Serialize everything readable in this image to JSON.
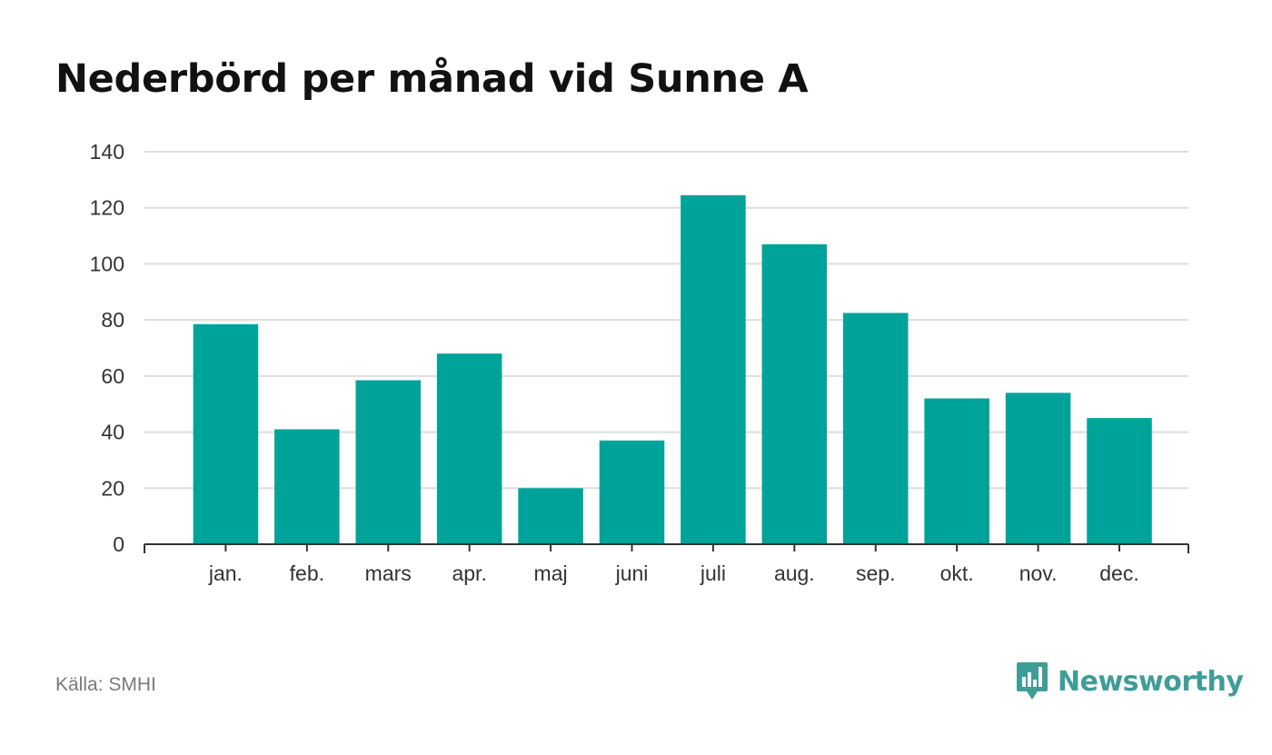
{
  "title": "Nederbörd per månad vid Sunne A",
  "source": "Källa: SMHI",
  "brand": {
    "name": "Newsworthy",
    "color": "#3f9d97",
    "icon": "bar-chart-speech-bubble-icon"
  },
  "colors": {
    "bar": "#00a39a",
    "grid": "#dddddd",
    "axis": "#333333",
    "text": "#333333"
  },
  "chart_data": {
    "type": "bar",
    "title": "Nederbörd per månad vid Sunne A",
    "xlabel": "",
    "ylabel": "",
    "categories": [
      "jan.",
      "feb.",
      "mars",
      "apr.",
      "maj",
      "juni",
      "juli",
      "aug.",
      "sep.",
      "okt.",
      "nov.",
      "dec."
    ],
    "values": [
      78.5,
      41,
      58.5,
      68,
      20,
      37,
      124.5,
      107,
      82.5,
      52,
      54,
      45
    ],
    "ylim": [
      0,
      140
    ],
    "yticks": [
      0,
      20,
      40,
      60,
      80,
      100,
      120,
      140
    ],
    "grid": true,
    "legend": "none"
  }
}
